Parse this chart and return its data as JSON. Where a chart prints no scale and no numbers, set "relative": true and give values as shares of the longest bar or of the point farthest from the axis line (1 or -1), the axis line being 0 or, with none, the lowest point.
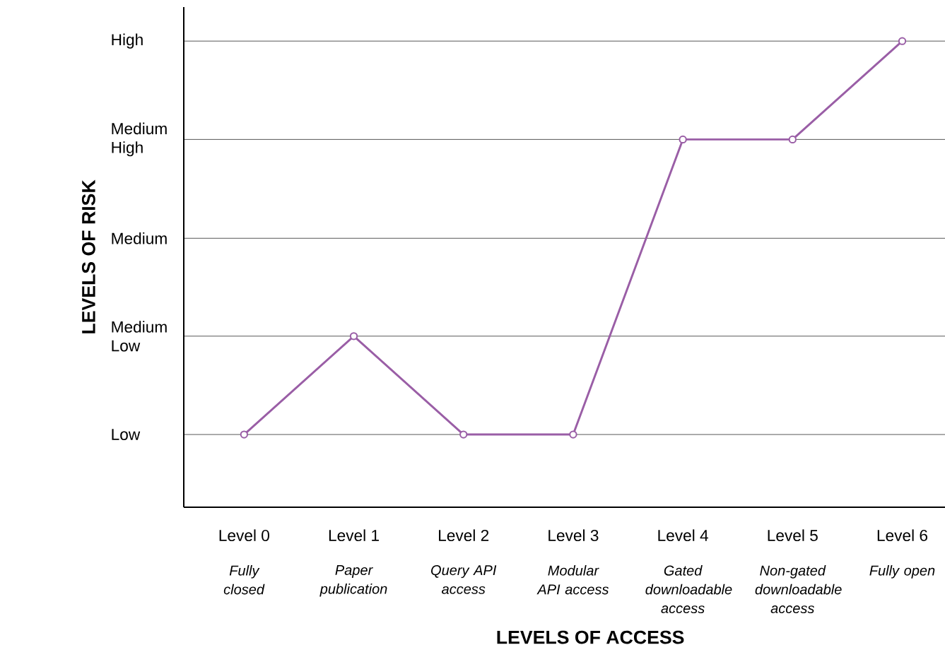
{
  "chart_data": {
    "type": "line",
    "xlabel": "LEVELS OF ACCESS",
    "ylabel": "LEVELS OF RISK",
    "categories": [
      "Level 0",
      "Level 1",
      "Level 2",
      "Level 3",
      "Level 4",
      "Level 5",
      "Level 6"
    ],
    "values": [
      0.156,
      0.367,
      0.156,
      0.156,
      0.789,
      0.789,
      1
    ],
    "color": "#9a5ea6",
    "relative": true,
    "ref_lines": [
      {
        "axis": "y",
        "value": 0.156,
        "label": "Low",
        "color": "#000000"
      },
      {
        "axis": "y",
        "value": 0.367,
        "label": "Medium Low",
        "color": "#000000"
      },
      {
        "axis": "y",
        "value": 0.577,
        "label": "Medium",
        "color": "#000000"
      },
      {
        "axis": "y",
        "value": 0.789,
        "label": "Medium High",
        "color": "#000000"
      },
      {
        "axis": "y",
        "value": 1,
        "label": "High",
        "color": "#000000"
      }
    ],
    "marker": "circle",
    "annotations": [
      "*Fully closed*",
      "*Paper publication*",
      "*Query API access*",
      "*Modular API access*",
      "*Gated downloadable access*",
      "*Non-gated downloadable access*",
      "*Fully open*"
    ]
  }
}
